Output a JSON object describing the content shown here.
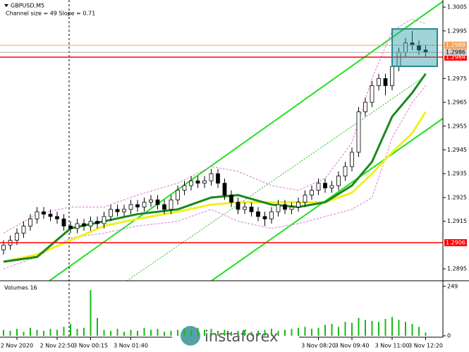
{
  "chart_data": {
    "type": "candlestick",
    "title": "GBPUSD,M5",
    "subtitle": "Channel size = 49 Slope = 0.71",
    "categories": [
      null,
      null,
      "2 Nov 2020",
      null,
      null,
      null,
      null,
      null,
      "2 Nov 22:50",
      null,
      null,
      null,
      null,
      "3 Nov 00:15",
      null,
      null,
      null,
      null,
      null,
      "3 Nov 01:40",
      null,
      null,
      null,
      null,
      null,
      null,
      null,
      null,
      null,
      null,
      null,
      null,
      null,
      null,
      null,
      null,
      null,
      null,
      null,
      null,
      null,
      null,
      null,
      null,
      null,
      null,
      null,
      "3 Nov 08:20",
      null,
      null,
      null,
      null,
      "3 Nov 09:40",
      null,
      null,
      null,
      null,
      null,
      "3 Nov 11:00",
      null,
      null,
      null,
      null,
      "3 Nov 12:20"
    ],
    "open": [
      1.2903,
      1.2905,
      1.2907,
      1.291,
      1.2913,
      1.2916,
      1.2919,
      1.2918,
      1.2917,
      1.2916,
      1.2913,
      1.2912,
      1.2914,
      1.2913,
      1.2915,
      1.2914,
      1.2917,
      1.292,
      1.2919,
      1.292,
      1.2922,
      1.2921,
      1.2923,
      1.2924,
      1.2922,
      1.292,
      1.2924,
      1.2928,
      1.293,
      1.2932,
      1.2931,
      1.2932,
      1.2935,
      1.2931,
      1.2926,
      1.2923,
      1.292,
      1.2921,
      1.2919,
      1.2917,
      1.2916,
      1.2919,
      1.2922,
      1.292,
      1.2921,
      1.2923,
      1.2926,
      1.2928,
      1.2931,
      1.2929,
      1.293,
      1.2934,
      1.2938,
      1.2944,
      1.2961,
      1.2965,
      1.2972,
      1.2975,
      1.2972,
      1.298,
      1.2986,
      1.299,
      1.2989,
      1.2987
    ],
    "high": [
      1.2907,
      1.2909,
      1.2912,
      1.2915,
      1.2918,
      1.2921,
      1.2921,
      1.292,
      1.2919,
      1.2918,
      1.2915,
      1.2916,
      1.2916,
      1.2917,
      1.2917,
      1.2919,
      1.2922,
      1.2922,
      1.2922,
      1.2924,
      1.2924,
      1.2925,
      1.2926,
      1.2926,
      1.2924,
      1.2926,
      1.293,
      1.2932,
      1.2934,
      1.2934,
      1.2934,
      1.2937,
      1.2937,
      1.2933,
      1.2928,
      1.2925,
      1.2923,
      1.2923,
      1.2921,
      1.2919,
      1.2921,
      1.2924,
      1.2924,
      1.2923,
      1.2925,
      1.2928,
      1.293,
      1.2933,
      1.2933,
      1.2932,
      1.2936,
      1.294,
      1.2946,
      1.2963,
      1.2967,
      1.2974,
      1.2977,
      1.2977,
      1.2982,
      1.2988,
      1.2992,
      1.2995,
      1.2991,
      1.2989
    ],
    "low": [
      1.2901,
      1.2903,
      1.2905,
      1.2908,
      1.2911,
      1.2914,
      1.2916,
      1.2915,
      1.2914,
      1.2911,
      1.291,
      1.291,
      1.2911,
      1.2911,
      1.2912,
      1.2912,
      1.2915,
      1.2917,
      1.2917,
      1.2918,
      1.2919,
      1.2919,
      1.2921,
      1.292,
      1.2918,
      1.2918,
      1.2922,
      1.2926,
      1.2928,
      1.2929,
      1.2929,
      1.293,
      1.2929,
      1.2924,
      1.2921,
      1.2918,
      1.2918,
      1.2917,
      1.2915,
      1.2913,
      1.2914,
      1.2917,
      1.2918,
      1.2918,
      1.2919,
      1.2921,
      1.2924,
      1.2926,
      1.2927,
      1.2927,
      1.2928,
      1.2932,
      1.2936,
      1.2942,
      1.2959,
      1.2963,
      1.297,
      1.2968,
      1.297,
      1.2978,
      1.2984,
      1.2987,
      1.2985,
      1.2984
    ],
    "close": [
      1.2905,
      1.2907,
      1.291,
      1.2913,
      1.2916,
      1.2919,
      1.2918,
      1.2917,
      1.2916,
      1.2913,
      1.2912,
      1.2914,
      1.2913,
      1.2915,
      1.2914,
      1.2917,
      1.292,
      1.2919,
      1.292,
      1.2922,
      1.2921,
      1.2923,
      1.2924,
      1.2922,
      1.292,
      1.2924,
      1.2928,
      1.293,
      1.2932,
      1.2931,
      1.2932,
      1.2935,
      1.2931,
      1.2926,
      1.2923,
      1.292,
      1.2921,
      1.2919,
      1.2917,
      1.2916,
      1.2919,
      1.2922,
      1.292,
      1.2921,
      1.2923,
      1.2926,
      1.2928,
      1.2931,
      1.2929,
      1.293,
      1.2934,
      1.2938,
      1.2944,
      1.2961,
      1.2965,
      1.2972,
      1.2975,
      1.2972,
      1.298,
      1.2986,
      1.299,
      1.2989,
      1.2987,
      1.2986
    ],
    "ylim": [
      1.289,
      1.3008
    ],
    "yticks": [
      1.2895,
      1.2915,
      1.2925,
      1.2935,
      1.2945,
      1.2955,
      1.2965,
      1.2975,
      1.2995,
      1.3005
    ],
    "hlines": [
      {
        "value": 1.2989,
        "color": "#f5a05a"
      },
      {
        "value": 1.2984,
        "color": "#ff0000"
      },
      {
        "value": 1.2906,
        "color": "#ff0000"
      }
    ],
    "bid": 1.2986,
    "indicators": [
      {
        "color": "#d67ad6",
        "dash": true,
        "x": [
          0,
          5,
          10,
          15,
          20,
          26,
          31,
          35,
          40,
          44,
          48,
          52,
          55,
          58,
          61,
          63
        ],
        "values": [
          1.291,
          1.2918,
          1.2921,
          1.2921,
          1.2926,
          1.2931,
          1.2938,
          1.2936,
          1.293,
          1.2928,
          1.2933,
          1.2948,
          1.2975,
          1.2995,
          1.3,
          1.2998
        ]
      },
      {
        "color": "#d67ad6",
        "dash": true,
        "x": [
          0,
          5,
          10,
          15,
          20,
          26,
          31,
          35,
          40,
          44,
          48,
          52,
          55,
          58,
          61,
          63
        ],
        "values": [
          1.2895,
          1.29,
          1.2908,
          1.291,
          1.2913,
          1.2915,
          1.292,
          1.2915,
          1.2912,
          1.2914,
          1.2917,
          1.292,
          1.2925,
          1.295,
          1.2965,
          1.2972
        ]
      },
      {
        "color": "#f0f020",
        "width": 3,
        "x": [
          0,
          5,
          10,
          15,
          20,
          26,
          31,
          35,
          40,
          44,
          48,
          52,
          55,
          58,
          61,
          63
        ],
        "values": [
          1.2898,
          1.2901,
          1.2907,
          1.2913,
          1.2916,
          1.2919,
          1.2922,
          1.2923,
          1.2923,
          1.2923,
          1.2923,
          1.2927,
          1.2935,
          1.2944,
          1.2952,
          1.2961
        ]
      },
      {
        "color": "#1a8a1a",
        "width": 3,
        "x": [
          0,
          5,
          10,
          15,
          20,
          26,
          31,
          35,
          40,
          44,
          48,
          52,
          55,
          58,
          61,
          63
        ],
        "values": [
          1.2898,
          1.29,
          1.2912,
          1.2915,
          1.2918,
          1.292,
          1.2925,
          1.2926,
          1.2922,
          1.2921,
          1.2923,
          1.293,
          1.294,
          1.2959,
          1.2969,
          1.2977
        ]
      }
    ],
    "volume": {
      "title": "Volumes 16",
      "color": "#18b818",
      "ylim": [
        0,
        270
      ],
      "yticks": [
        0,
        249
      ],
      "values": [
        30,
        25,
        35,
        20,
        40,
        30,
        25,
        35,
        30,
        45,
        60,
        35,
        40,
        230,
        90,
        30,
        25,
        35,
        20,
        30,
        25,
        40,
        30,
        35,
        20,
        25,
        30,
        35,
        25,
        40,
        30,
        35,
        25,
        30,
        20,
        25,
        30,
        20,
        25,
        30,
        35,
        25,
        30,
        35,
        40,
        45,
        35,
        40,
        55,
        60,
        45,
        70,
        65,
        90,
        80,
        75,
        70,
        85,
        95,
        80,
        70,
        60,
        45,
        16
      ]
    },
    "watermark": "instaforex"
  }
}
